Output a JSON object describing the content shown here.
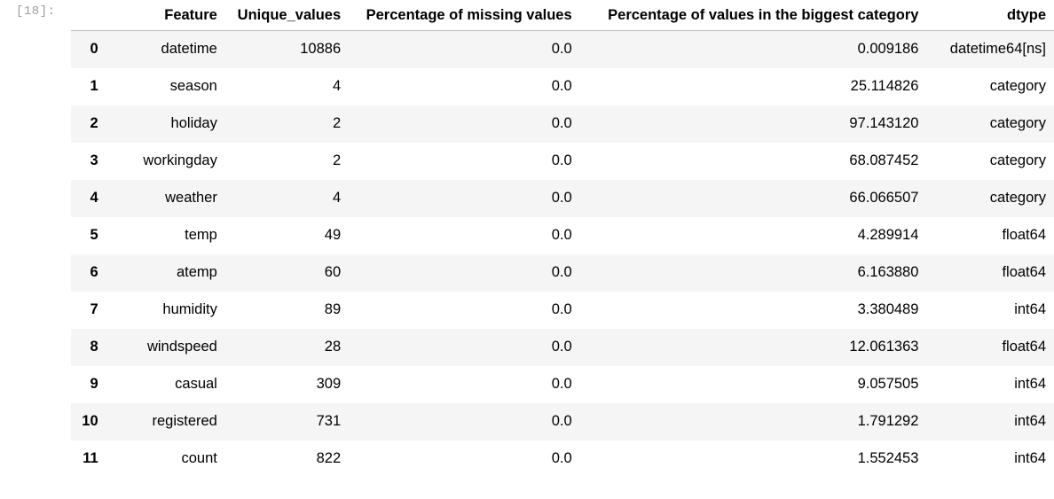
{
  "cell": {
    "prompt": "[18]:"
  },
  "table": {
    "columns": [
      "",
      "Feature",
      "Unique_values",
      "Percentage of missing values",
      "Percentage of values in the biggest category",
      "dtype"
    ],
    "rows": [
      {
        "index": "0",
        "feature": "datetime",
        "unique": "10886",
        "missing": "0.0",
        "biggest": "0.009186",
        "dtype": "datetime64[ns]"
      },
      {
        "index": "1",
        "feature": "season",
        "unique": "4",
        "missing": "0.0",
        "biggest": "25.114826",
        "dtype": "category"
      },
      {
        "index": "2",
        "feature": "holiday",
        "unique": "2",
        "missing": "0.0",
        "biggest": "97.143120",
        "dtype": "category"
      },
      {
        "index": "3",
        "feature": "workingday",
        "unique": "2",
        "missing": "0.0",
        "biggest": "68.087452",
        "dtype": "category"
      },
      {
        "index": "4",
        "feature": "weather",
        "unique": "4",
        "missing": "0.0",
        "biggest": "66.066507",
        "dtype": "category"
      },
      {
        "index": "5",
        "feature": "temp",
        "unique": "49",
        "missing": "0.0",
        "biggest": "4.289914",
        "dtype": "float64"
      },
      {
        "index": "6",
        "feature": "atemp",
        "unique": "60",
        "missing": "0.0",
        "biggest": "6.163880",
        "dtype": "float64"
      },
      {
        "index": "7",
        "feature": "humidity",
        "unique": "89",
        "missing": "0.0",
        "biggest": "3.380489",
        "dtype": "int64"
      },
      {
        "index": "8",
        "feature": "windspeed",
        "unique": "28",
        "missing": "0.0",
        "biggest": "12.061363",
        "dtype": "float64"
      },
      {
        "index": "9",
        "feature": "casual",
        "unique": "309",
        "missing": "0.0",
        "biggest": "9.057505",
        "dtype": "int64"
      },
      {
        "index": "10",
        "feature": "registered",
        "unique": "731",
        "missing": "0.0",
        "biggest": "1.791292",
        "dtype": "int64"
      },
      {
        "index": "11",
        "feature": "count",
        "unique": "822",
        "missing": "0.0",
        "biggest": "1.552453",
        "dtype": "int64"
      }
    ]
  }
}
